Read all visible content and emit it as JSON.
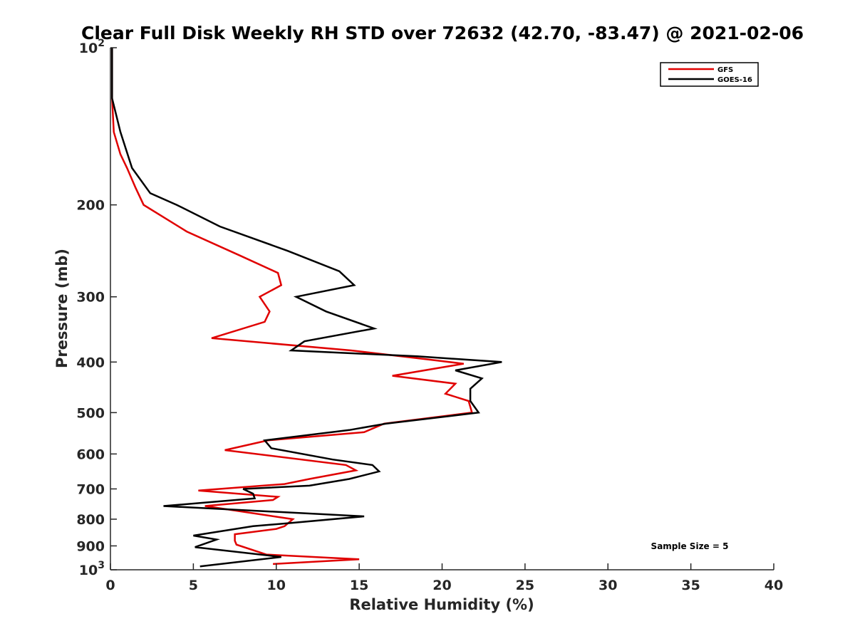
{
  "chart_data": {
    "type": "line",
    "title": "Clear Full Disk Weekly RH STD over 72632 (42.70, -83.47) @ 2021-02-06",
    "xlabel": "Relative Humidity (%)",
    "ylabel": "Pressure (mb)",
    "xlim": [
      0,
      40
    ],
    "ylim": [
      100,
      1000
    ],
    "y_scale": "log",
    "y_reversed": true,
    "x_ticks": [
      0,
      5,
      10,
      15,
      20,
      25,
      30,
      35,
      40
    ],
    "y_ticks": [
      {
        "value": 100,
        "label": "10",
        "sup": "2"
      },
      {
        "value": 200,
        "label": "200",
        "sup": ""
      },
      {
        "value": 300,
        "label": "300",
        "sup": ""
      },
      {
        "value": 400,
        "label": "400",
        "sup": ""
      },
      {
        "value": 500,
        "label": "500",
        "sup": ""
      },
      {
        "value": 600,
        "label": "600",
        "sup": ""
      },
      {
        "value": 700,
        "label": "700",
        "sup": ""
      },
      {
        "value": 800,
        "label": "800",
        "sup": ""
      },
      {
        "value": 900,
        "label": "900",
        "sup": ""
      },
      {
        "value": 1000,
        "label": "10",
        "sup": "3"
      }
    ],
    "grid": false,
    "legend_position": "top-right",
    "annotation": "Sample Size = 5",
    "series": [
      {
        "name": "GFS",
        "color": "#e00000",
        "points": [
          [
            0.1,
            100
          ],
          [
            0.1,
            125
          ],
          [
            0.2,
            145
          ],
          [
            0.6,
            160
          ],
          [
            1.0,
            170
          ],
          [
            1.5,
            185
          ],
          [
            2.0,
            200
          ],
          [
            4.6,
            225
          ],
          [
            7.8,
            250
          ],
          [
            10.1,
            270
          ],
          [
            10.3,
            285
          ],
          [
            9.0,
            300
          ],
          [
            9.6,
            320
          ],
          [
            9.3,
            335
          ],
          [
            6.1,
            360
          ],
          [
            14.5,
            380
          ],
          [
            19.0,
            395
          ],
          [
            21.3,
            403
          ],
          [
            17.0,
            425
          ],
          [
            20.8,
            440
          ],
          [
            20.2,
            460
          ],
          [
            21.6,
            475
          ],
          [
            21.8,
            500
          ],
          [
            16.5,
            525
          ],
          [
            15.3,
            545
          ],
          [
            9.5,
            565
          ],
          [
            6.9,
            590
          ],
          [
            14.2,
            630
          ],
          [
            14.8,
            645
          ],
          [
            12.0,
            670
          ],
          [
            10.5,
            685
          ],
          [
            5.3,
            705
          ],
          [
            10.1,
            725
          ],
          [
            9.8,
            735
          ],
          [
            5.7,
            755
          ],
          [
            11.0,
            800
          ],
          [
            10.5,
            825
          ],
          [
            10.0,
            835
          ],
          [
            7.5,
            855
          ],
          [
            7.5,
            880
          ],
          [
            7.6,
            895
          ],
          [
            9.4,
            935
          ],
          [
            15.0,
            955
          ],
          [
            9.8,
            975
          ]
        ]
      },
      {
        "name": "GOES-16",
        "color": "#000000",
        "points": [
          [
            0.1,
            100
          ],
          [
            0.1,
            125
          ],
          [
            0.6,
            145
          ],
          [
            1.3,
            170
          ],
          [
            2.4,
            190
          ],
          [
            4.0,
            200
          ],
          [
            6.6,
            220
          ],
          [
            10.7,
            245
          ],
          [
            13.8,
            268
          ],
          [
            14.7,
            285
          ],
          [
            11.2,
            300
          ],
          [
            13.0,
            320
          ],
          [
            15.9,
            345
          ],
          [
            11.7,
            365
          ],
          [
            10.9,
            380
          ],
          [
            18.5,
            390
          ],
          [
            23.6,
            400
          ],
          [
            20.8,
            415
          ],
          [
            22.4,
            430
          ],
          [
            21.7,
            450
          ],
          [
            21.7,
            475
          ],
          [
            22.2,
            500
          ],
          [
            16.6,
            525
          ],
          [
            14.4,
            540
          ],
          [
            9.3,
            565
          ],
          [
            9.7,
            585
          ],
          [
            13.4,
            615
          ],
          [
            15.8,
            630
          ],
          [
            16.2,
            648
          ],
          [
            14.4,
            670
          ],
          [
            12.0,
            690
          ],
          [
            8.0,
            700
          ],
          [
            8.6,
            715
          ],
          [
            8.7,
            730
          ],
          [
            3.2,
            755
          ],
          [
            15.3,
            790
          ],
          [
            10.6,
            815
          ],
          [
            8.6,
            825
          ],
          [
            5.0,
            860
          ],
          [
            6.4,
            875
          ],
          [
            5.1,
            905
          ],
          [
            10.3,
            945
          ],
          [
            5.4,
            985
          ]
        ]
      }
    ]
  }
}
